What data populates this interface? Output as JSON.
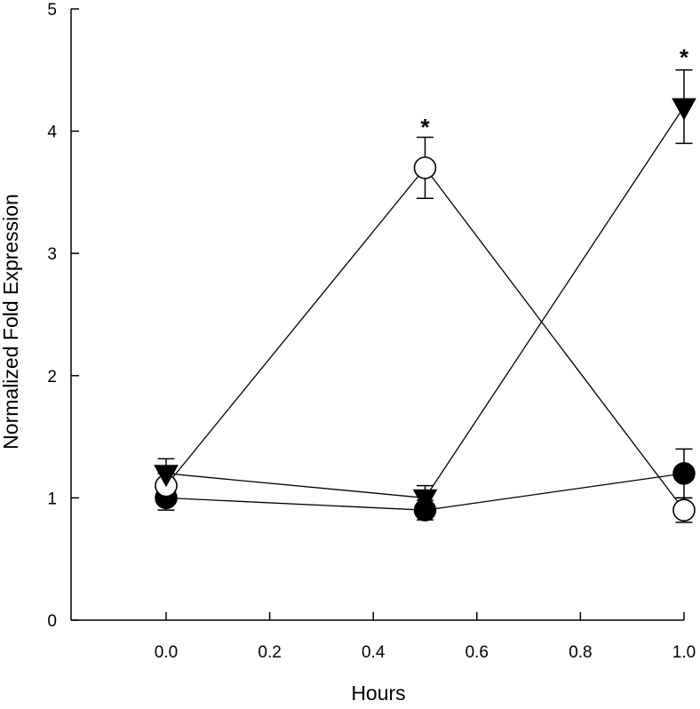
{
  "chart_data": {
    "type": "line",
    "title": "",
    "xlabel": "Hours",
    "ylabel": "Normalized Fold Expression",
    "xlim": [
      -0.18,
      1.0
    ],
    "ylim": [
      0,
      5
    ],
    "x_ticks": [
      0.0,
      0.2,
      0.4,
      0.6,
      0.8,
      1.0
    ],
    "x_tick_labels": [
      "0.0",
      "0.2",
      "0.4",
      "0.6",
      "0.8",
      "1.0"
    ],
    "y_ticks": [
      0,
      1,
      2,
      3,
      4,
      5
    ],
    "y_tick_labels": [
      "0",
      "1",
      "2",
      "3",
      "4",
      "5"
    ],
    "grid": false,
    "series": [
      {
        "name": "filled circle",
        "marker": "filled-circle",
        "x": [
          0.0,
          0.5,
          1.0
        ],
        "values": [
          1.0,
          0.9,
          1.2
        ],
        "errors": [
          0.1,
          0.08,
          0.2
        ]
      },
      {
        "name": "open circle",
        "marker": "open-circle",
        "x": [
          0.0,
          0.5,
          1.0
        ],
        "values": [
          1.1,
          3.7,
          0.9
        ],
        "errors": [
          0.1,
          0.25,
          0.1
        ]
      },
      {
        "name": "filled triangle",
        "marker": "filled-triangle-down",
        "x": [
          0.0,
          0.5,
          1.0
        ],
        "values": [
          1.2,
          1.0,
          4.2
        ],
        "errors": [
          0.12,
          0.1,
          0.3
        ]
      }
    ],
    "annotations": [
      {
        "text": "*",
        "x": 0.5,
        "y": 4.1
      },
      {
        "text": "*",
        "x": 1.0,
        "y": 4.67
      }
    ]
  }
}
